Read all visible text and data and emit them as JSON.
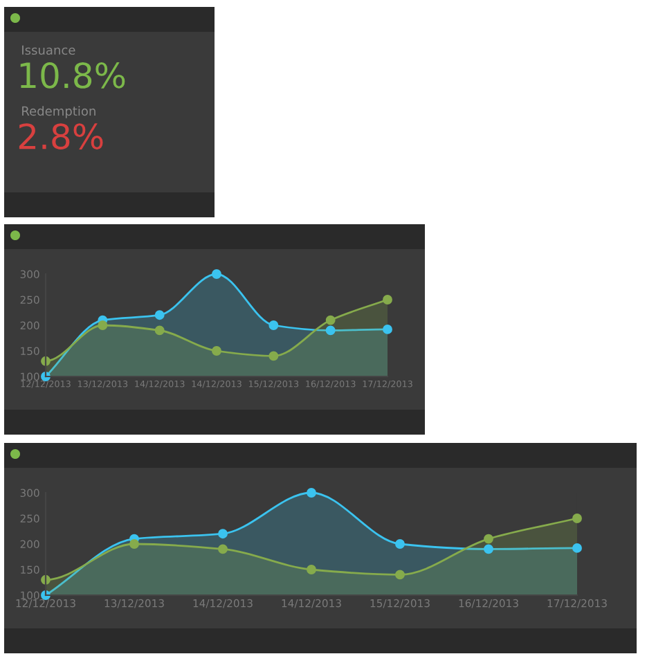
{
  "chart_data": [
    {
      "type": "other",
      "annotations": [
        "Issuance",
        "10.8%",
        "Redemption",
        "2.8%"
      ]
    },
    {
      "type": "area",
      "categories": [
        "12/12/2013",
        "13/12/2013",
        "14/12/2013",
        "14/12/2013",
        "15/12/2013",
        "16/12/2013",
        "17/12/2013"
      ],
      "ylim": [
        100,
        300
      ],
      "yticks": [
        100,
        150,
        200,
        250,
        300
      ],
      "marker": "circle",
      "legend": false,
      "grid": false,
      "series": [
        {
          "color": "#3bc3ef",
          "values": [
            100,
            210,
            220,
            300,
            200,
            190,
            192
          ]
        },
        {
          "color": "#86ab4c",
          "values": [
            130,
            200,
            190,
            150,
            140,
            210,
            250
          ]
        }
      ]
    },
    {
      "type": "area",
      "categories": [
        "12/12/2013",
        "13/12/2013",
        "14/12/2013",
        "14/12/2013",
        "15/12/2013",
        "16/12/2013",
        "17/12/2013"
      ],
      "ylim": [
        100,
        300
      ],
      "yticks": [
        100,
        150,
        200,
        250,
        300
      ],
      "marker": "circle",
      "legend": false,
      "grid": false,
      "series": [
        {
          "color": "#3bc3ef",
          "values": [
            100,
            210,
            220,
            300,
            200,
            190,
            192
          ]
        },
        {
          "color": "#86ab4c",
          "values": [
            130,
            200,
            190,
            150,
            140,
            210,
            250
          ]
        }
      ]
    }
  ]
}
